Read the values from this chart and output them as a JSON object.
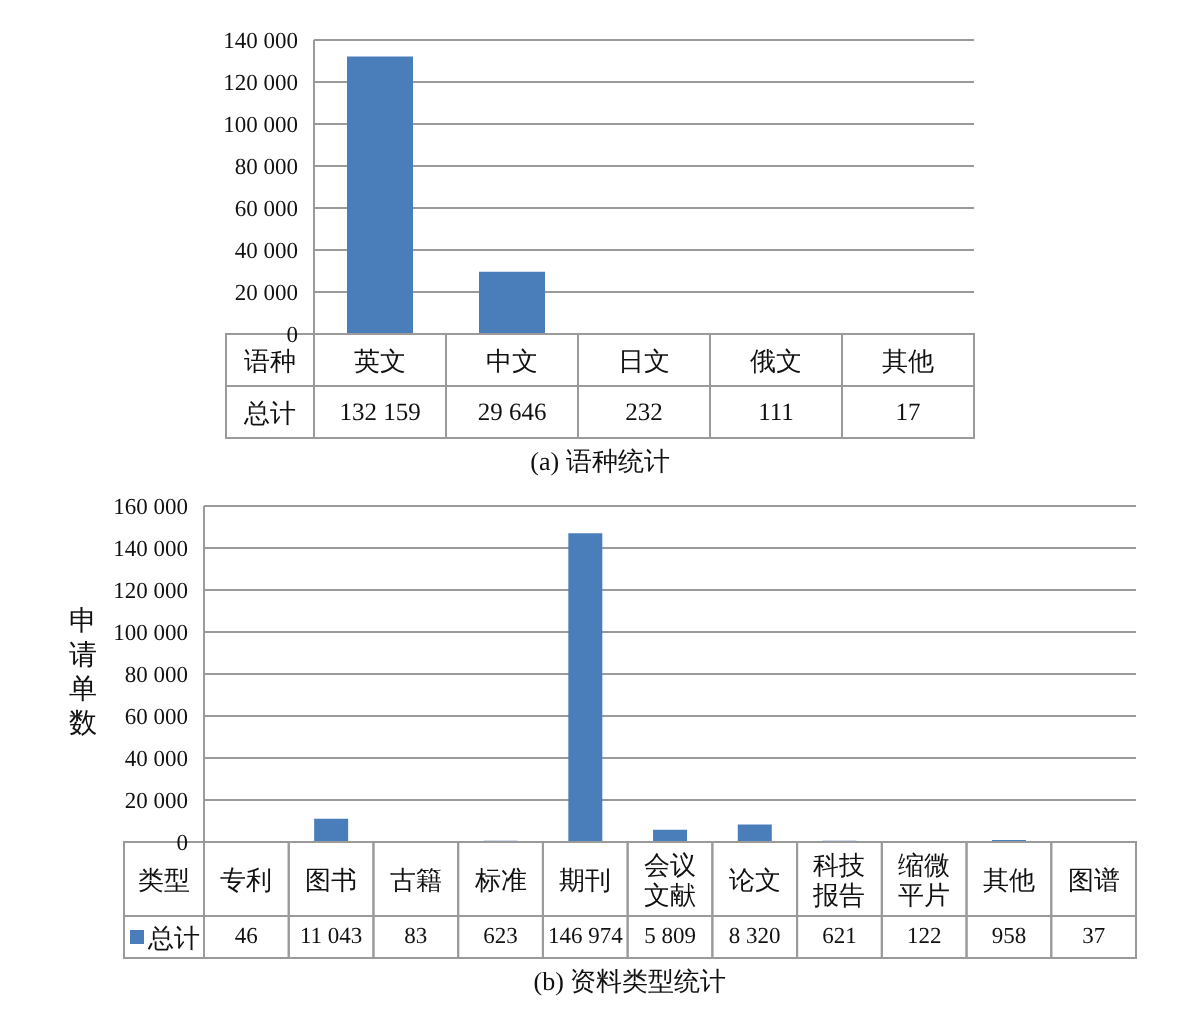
{
  "chart_data": [
    {
      "type": "bar",
      "title": "(a) 语种统计",
      "xlabel": "语种",
      "categories": [
        "英文",
        "中文",
        "日文",
        "俄文",
        "其他"
      ],
      "series": [
        {
          "name": "总计",
          "color": "#4a7ebb",
          "values": [
            132159,
            29646,
            232,
            111,
            17
          ],
          "value_labels": [
            "132 159",
            "29 646",
            "232",
            "111",
            "17"
          ]
        }
      ],
      "ylim": [
        0,
        140000
      ],
      "yticks": [
        0,
        {
          "value": 20000,
          "label": "20 000"
        },
        {
          "value": 40000,
          "label": "40 000"
        },
        {
          "value": 60000,
          "label": "60 000"
        },
        {
          "value": 80000,
          "label": "80 000"
        },
        {
          "value": 100000,
          "label": "100 000"
        },
        {
          "value": 120000,
          "label": "120 000"
        },
        {
          "value": 140000,
          "label": "140 000"
        }
      ],
      "grid": "y"
    },
    {
      "type": "bar",
      "title": "(b) 资料类型统计",
      "xlabel": "类型",
      "ylabel": "申请单数",
      "categories": [
        "专利",
        "图书",
        "古籍",
        "标准",
        "期刊",
        "会议文献",
        "论文",
        "科技报告",
        "缩微平片",
        "其他",
        "图谱"
      ],
      "series": [
        {
          "name": "总计",
          "color": "#4a7ebb",
          "values": [
            46,
            11043,
            83,
            623,
            146974,
            5809,
            8320,
            621,
            122,
            958,
            37
          ],
          "value_labels": [
            "46",
            "11 043",
            "83",
            "623",
            "146 974",
            "5 809",
            "8 320",
            "621",
            "122",
            "958",
            "37"
          ]
        }
      ],
      "ylim": [
        0,
        160000
      ],
      "yticks": [
        0,
        {
          "value": 20000,
          "label": "20 000"
        },
        {
          "value": 40000,
          "label": "40 000"
        },
        {
          "value": 60000,
          "label": "60 000"
        },
        {
          "value": 80000,
          "label": "80 000"
        },
        {
          "value": 100000,
          "label": "100 000"
        },
        {
          "value": 120000,
          "label": "120 000"
        },
        {
          "value": 140000,
          "label": "140 000"
        },
        {
          "value": 160000,
          "label": "160 000"
        }
      ],
      "grid": "y",
      "legend": "bottom left"
    }
  ]
}
